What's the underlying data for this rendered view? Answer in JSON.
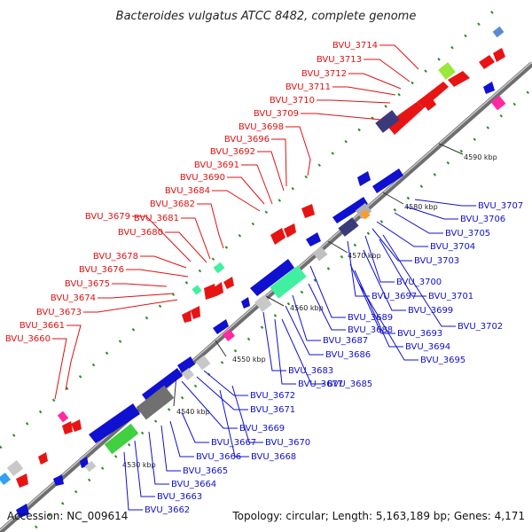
{
  "title": "Bacteroides vulgatus ATCC 8482, complete genome",
  "footer": {
    "accession": "Accession: NC_009614",
    "topology": "Topology: circular; Length: 5,163,189 bp; Genes: 4,171"
  },
  "colors": {
    "forward_label": "#e01010",
    "reverse_label": "#1010d0",
    "backbone": "#8a8a8a",
    "tick_dot": "#2a8a2a"
  },
  "ticks": [
    "4530 kbp",
    "4540 kbp",
    "4550 kbp",
    "4560 kbp",
    "4570 kbp",
    "4580 kbp",
    "4590 kbp"
  ],
  "forward_labels": [
    "BVU_3714",
    "BVU_3713",
    "BVU_3712",
    "BVU_3711",
    "BVU_3710",
    "BVU_3709",
    "BVU_3698",
    "BVU_3696",
    "BVU_3692",
    "BVU_3691",
    "BVU_3690",
    "BVU_3684",
    "BVU_3682",
    "BVU_3679",
    "BVU_3681",
    "BVU_3680",
    "BVU_3678",
    "BVU_3676",
    "BVU_3675",
    "BVU_3674",
    "BVU_3673",
    "BVU_3661",
    "BVU_3660"
  ],
  "reverse_labels": [
    "BVU_3707",
    "BVU_3706",
    "BVU_3705",
    "BVU_3704",
    "BVU_3703",
    "BVU_3700",
    "BVU_3697",
    "BVU_3701",
    "BVU_3699",
    "BVU_3689",
    "BVU_3688",
    "BVU_3693",
    "BVU_3687",
    "BVU_3694",
    "BVU_3686",
    "BVU_3695",
    "BVU_3702",
    "BVU_3683",
    "BVU_3677",
    "BVU_3685",
    "BVU_3672",
    "BVU_3671",
    "BVU_3669",
    "BVU_3670",
    "BVU_3667",
    "BVU_3666",
    "BVU_3668",
    "BVU_3665",
    "BVU_3664",
    "BVU_3663",
    "BVU_3662"
  ]
}
